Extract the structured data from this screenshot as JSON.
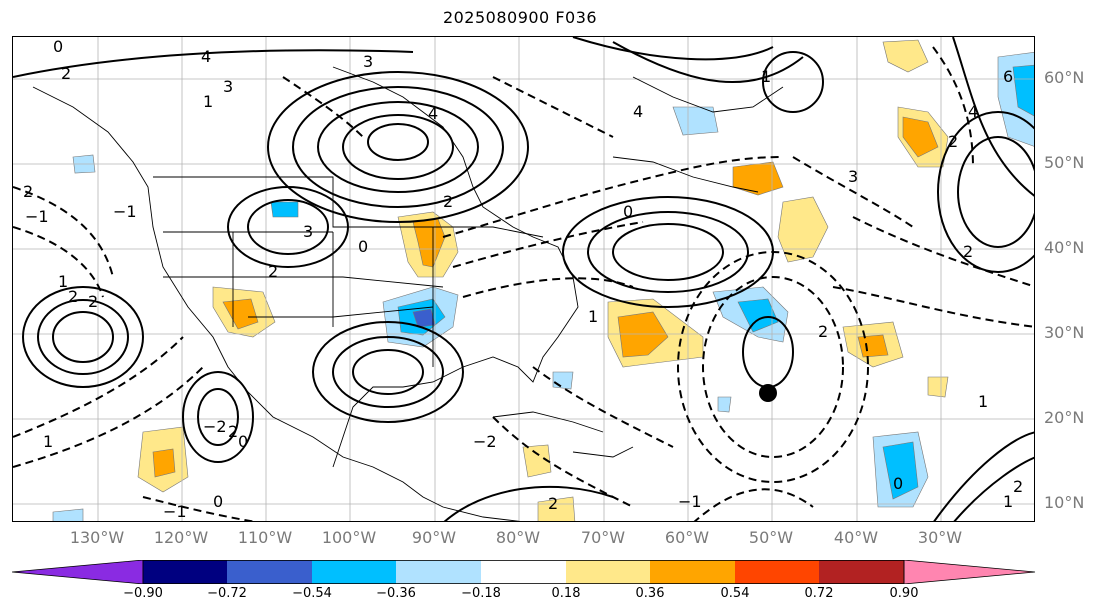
{
  "title": "2025080900 F036",
  "lat_labels": [
    "60°N",
    "50°N",
    "40°N",
    "30°N",
    "20°N",
    "10°N"
  ],
  "lon_labels": [
    "130°W",
    "120°W",
    "110°W",
    "100°W",
    "90°W",
    "80°W",
    "70°W",
    "60°W",
    "50°W",
    "40°W",
    "30°W"
  ],
  "colorbar": {
    "colors": [
      "#8a2be2",
      "#000080",
      "#3a5fcd",
      "#00bfff",
      "#b0e2ff",
      "#ffffff",
      "#ffe88a",
      "#ffa500",
      "#ff4500",
      "#b22222",
      "#ff85b0"
    ],
    "ticks": [
      "−0.90",
      "−0.72",
      "−0.54",
      "−0.36",
      "−0.18",
      "0.18",
      "0.36",
      "0.54",
      "0.72",
      "0.90"
    ]
  },
  "contour_labels": [
    "0",
    "2",
    "4",
    "3",
    "1",
    "−1",
    "2",
    "3",
    "4",
    "2",
    "0",
    "−1",
    "2",
    "4",
    "3",
    "2",
    "1",
    "2",
    "−2",
    "0",
    "1",
    "0",
    "−2",
    "2",
    "0",
    "1",
    "2",
    "3",
    "2",
    "0",
    "−1",
    "2",
    "1",
    "1",
    "4",
    "6",
    "1",
    "2",
    "2",
    "−1"
  ],
  "storm_marker": "tropical-system-dot"
}
